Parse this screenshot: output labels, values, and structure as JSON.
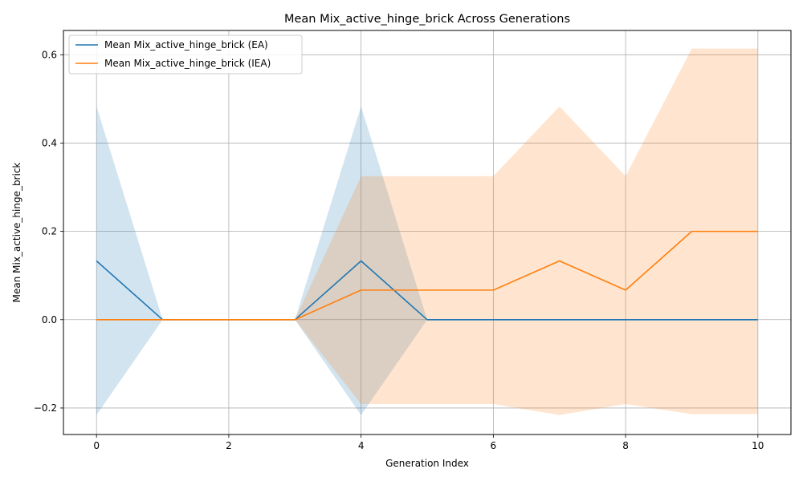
{
  "chart_data": {
    "type": "line",
    "title": "Mean Mix_active_hinge_brick Across Generations",
    "xlabel": "Generation Index",
    "ylabel": "Mean Mix_active_hinge_brick",
    "xlim": [
      -0.5,
      10.5
    ],
    "ylim": [
      -0.26,
      0.655
    ],
    "xticks": [
      0,
      2,
      4,
      6,
      8,
      10
    ],
    "yticks": [
      -0.2,
      0.0,
      0.2,
      0.4,
      0.6
    ],
    "ytick_labels": [
      "−0.2",
      "0.0",
      "0.2",
      "0.4",
      "0.6"
    ],
    "grid": true,
    "legend_position": "top-left",
    "x": [
      0,
      1,
      2,
      3,
      4,
      5,
      6,
      7,
      8,
      9,
      10
    ],
    "series": [
      {
        "name": "Mean Mix_active_hinge_brick (EA)",
        "color": "#1f77b4",
        "values": [
          0.133,
          0,
          0,
          0,
          0.133,
          0,
          0,
          0,
          0,
          0,
          0
        ],
        "band_upper": [
          0.483,
          0,
          0,
          0,
          0.483,
          0,
          0,
          0,
          0,
          0,
          0
        ],
        "band_lower": [
          -0.216,
          0,
          0,
          0,
          -0.216,
          0,
          0,
          0,
          0,
          0,
          0
        ]
      },
      {
        "name": "Mean Mix_active_hinge_brick (IEA)",
        "color": "#ff7f0e",
        "values": [
          0,
          0,
          0,
          0,
          0.067,
          0.067,
          0.067,
          0.133,
          0.067,
          0.2,
          0.2
        ],
        "band_upper": [
          0,
          0,
          0,
          0,
          0.325,
          0.325,
          0.325,
          0.483,
          0.325,
          0.614,
          0.614
        ],
        "band_lower": [
          0,
          0,
          0,
          0,
          -0.191,
          -0.191,
          -0.191,
          -0.216,
          -0.191,
          -0.214,
          -0.214
        ]
      }
    ]
  }
}
